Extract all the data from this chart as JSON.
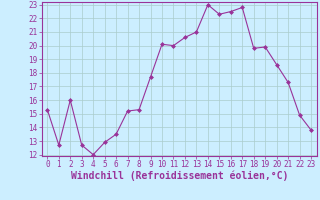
{
  "x": [
    0,
    1,
    2,
    3,
    4,
    5,
    6,
    7,
    8,
    9,
    10,
    11,
    12,
    13,
    14,
    15,
    16,
    17,
    18,
    19,
    20,
    21,
    22,
    23
  ],
  "y": [
    15.3,
    12.7,
    16.0,
    12.7,
    12.0,
    12.9,
    13.5,
    15.2,
    15.3,
    17.7,
    20.1,
    20.0,
    20.6,
    21.0,
    23.0,
    22.3,
    22.5,
    22.8,
    19.8,
    19.9,
    18.6,
    17.3,
    14.9,
    13.8
  ],
  "line_color": "#993399",
  "marker": "D",
  "marker_size": 2.0,
  "bg_color": "#cceeff",
  "grid_color": "#aacccc",
  "xlabel": "Windchill (Refroidissement éolien,°C)",
  "ylim": [
    12,
    23
  ],
  "xlim": [
    -0.5,
    23.5
  ],
  "yticks": [
    12,
    13,
    14,
    15,
    16,
    17,
    18,
    19,
    20,
    21,
    22,
    23
  ],
  "xticks": [
    0,
    1,
    2,
    3,
    4,
    5,
    6,
    7,
    8,
    9,
    10,
    11,
    12,
    13,
    14,
    15,
    16,
    17,
    18,
    19,
    20,
    21,
    22,
    23
  ],
  "tick_fontsize": 5.5,
  "xlabel_fontsize": 7.0
}
